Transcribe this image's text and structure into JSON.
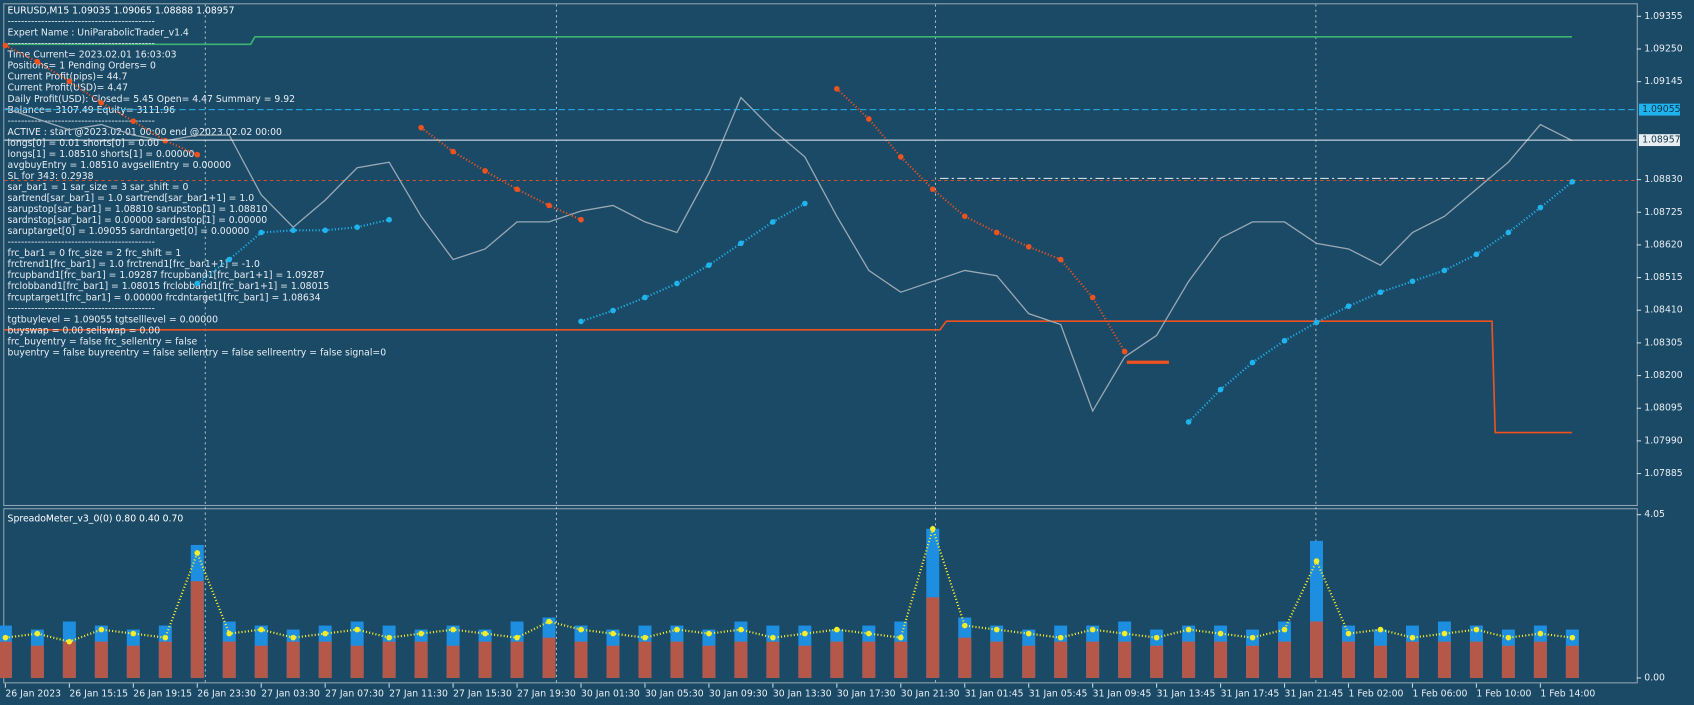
{
  "header": {
    "symbol_line": "EURUSD,M15  1.09035 1.09065 1.08888 1.08957"
  },
  "info_panel": {
    "lines": [
      "--------------------------------------------",
      "Expert Name : UniParabolicTrader_v1.4",
      "--------------------------------------------",
      "Time  Current= 2023.02.01 16:03:03",
      "Positions= 1 Pending Orders= 0",
      "Current Profit(pips)= 44.7",
      "Current Profit(USD)= 4.47",
      "Daily Profit(USD): Closed= 5.45 Open= 4.47 Summary = 9.92",
      "Balance= 3107.49 Equity= 3111.96",
      "--------------------------------------------",
      "ACTIVE : start @2023.02.01 00:00  end @2023.02.02 00:00",
      "longs[0]    = 0.01 shorts[0] = 0.00",
      "longs[1]    = 1.08510 shorts[1] = 0.00000",
      "avgbuyEntry = 1.08510 avgsellEntry = 0.00000",
      "SL for 343: 0.2938",
      "sar_bar1 = 1 sar_size = 3 sar_shift = 0",
      "sartrend[sar_bar1] = 1.0 sartrend[sar_bar1+1] = 1.0",
      "sarupstop[sar_bar1] = 1.08810 sarupstop[1] = 1.08810",
      "sardnstop[sar_bar1] = 0.00000 sardnstop[1] = 0.00000",
      "saruptarget[0] = 1.09055 sardntarget[0] = 0.00000",
      "--------------------------------------------",
      "frc_bar1 = 0 frc_size = 2 frc_shift = 1",
      "frctrend1[frc_bar1] = 1.0 frctrend1[frc_bar1+1] = -1.0",
      "frcupband1[frc_bar1] = 1.09287 frcupband1[frc_bar1+1] = 1.09287",
      "frclobband1[frc_bar1] = 1.08015 frclobband1[frc_bar1+1] = 1.08015",
      "frcuptarget1[frc_bar1] = 0.00000 frcdntarget1[frc_bar1] = 1.08634",
      "--------------------------------------------",
      "tgtbuylevel = 1.09055 tgtselllevel = 0.00000",
      "buyswap = 0.00 sellswap = 0.00",
      "frc_buyentry = false frc_sellentry = false",
      "buyentry = false buyreentry = false sellentry = false sellreentry = false signal=0"
    ]
  },
  "chart_data": [
    {
      "type": "line",
      "categories": [
        "26 Jan 2023",
        null,
        "26 Jan 15:15",
        null,
        "26 Jan 19:15",
        null,
        "26 Jan 23:30",
        null,
        "27 Jan 03:30",
        null,
        "27 Jan 07:30",
        null,
        "27 Jan 11:30",
        null,
        "27 Jan 15:30",
        null,
        "27 Jan 19:30",
        null,
        "30 Jan 01:30",
        null,
        "30 Jan 05:30",
        null,
        "30 Jan 09:30",
        null,
        "30 Jan 13:30",
        null,
        "30 Jan 17:30",
        null,
        "30 Jan 21:30",
        null,
        "31 Jan 01:45",
        null,
        "31 Jan 05:45",
        null,
        "31 Jan 09:45",
        null,
        "31 Jan 13:45",
        null,
        "31 Jan 17:45",
        null,
        "31 Jan 21:45",
        null,
        "1 Feb 02:00",
        null,
        "1 Feb 06:00",
        null,
        "1 Feb 10:00",
        null,
        "1 Feb 14:00",
        null
      ],
      "series": [
        {
          "color": "#9aa9b4",
          "style": "line",
          "values": [
            1.09059,
            1.09025,
            1.0899,
            1.09007,
            1.08973,
            1.08955,
            1.08973,
            1.08973,
            1.08781,
            1.08677,
            1.08764,
            1.08868,
            1.08886,
            1.08712,
            1.08573,
            1.08607,
            1.08694,
            1.08694,
            1.08729,
            1.08747,
            1.08694,
            1.0866,
            1.08851,
            1.09094,
            1.0899,
            1.08903,
            1.08712,
            1.08538,
            1.08468,
            1.08503,
            1.08538,
            1.08521,
            1.08399,
            1.08364,
            1.08086,
            1.0826,
            1.08329,
            1.08503,
            1.08642,
            1.08694,
            1.08694,
            1.08625,
            1.08607,
            1.08555,
            1.0866,
            1.08712,
            1.08799,
            1.08886,
            1.09007,
            1.08955
          ]
        },
        {
          "color": "#1fb4ee",
          "style": "dots",
          "values": [
            null,
            null,
            null,
            null,
            null,
            null,
            1.08496,
            1.08573,
            1.0866,
            1.08667,
            1.08667,
            1.08677,
            1.08701,
            null,
            null,
            null,
            null,
            null,
            1.08374,
            1.08409,
            1.08451,
            1.08496,
            1.08555,
            1.08625,
            1.08694,
            1.08753,
            null,
            null,
            null,
            null,
            null,
            null,
            null,
            null,
            null,
            null,
            null,
            1.08051,
            1.08155,
            1.08242,
            1.08312,
            1.08371,
            1.08423,
            1.08468,
            1.08503,
            1.08538,
            1.0859,
            1.0866,
            1.0874,
            1.08823
          ]
        },
        {
          "color": "#f0521e",
          "style": "dots",
          "values": [
            1.09261,
            1.09209,
            1.09146,
            1.09077,
            1.09018,
            1.08955,
            1.0891,
            null,
            null,
            null,
            null,
            null,
            null,
            1.08997,
            1.0892,
            1.08858,
            1.08799,
            1.08747,
            1.08701,
            null,
            null,
            null,
            null,
            null,
            null,
            null,
            1.09122,
            1.09025,
            1.08903,
            1.08799,
            1.08712,
            1.0866,
            1.08614,
            1.08573,
            1.08451,
            1.08277,
            null,
            null,
            null,
            null,
            null,
            null,
            null,
            null,
            null,
            null,
            null,
            null,
            null,
            null
          ]
        }
      ],
      "levels": [
        {
          "value": 1.09055,
          "color": "#1fb4ee"
        },
        {
          "value": 1.08957,
          "color": "#e8eef2"
        }
      ],
      "ylim": [
        1.07784,
        1.09397
      ],
      "yticks": [
        1.09355,
        {
          "value": 1.0925,
          "label": "1.09250"
        },
        1.09145,
        {
          "value": 1.0883,
          "label": "1.08830"
        },
        1.08725,
        {
          "value": 1.0862,
          "label": "1.08620"
        },
        1.08515,
        {
          "value": 1.0841,
          "label": "1.08410"
        },
        1.08305,
        {
          "value": 1.082,
          "label": "1.08200"
        },
        1.08095,
        {
          "value": 1.0799,
          "label": "1.07990"
        },
        1.07885
      ]
    },
    {
      "type": "bar",
      "title": "SpreadoMeter_v3_0(0) 0.80 0.40 0.70",
      "series": [
        {
          "color": "#1e8fe0",
          "style": "bar",
          "values": [
            1.3,
            1.2,
            1.4,
            1.3,
            1.2,
            1.3,
            3.3,
            1.4,
            1.3,
            1.2,
            1.3,
            1.4,
            1.3,
            1.2,
            1.3,
            1.2,
            1.4,
            1.5,
            1.3,
            1.2,
            1.3,
            1.3,
            1.2,
            1.4,
            1.3,
            1.3,
            1.2,
            1.3,
            1.4,
            3.7,
            1.5,
            1.3,
            1.2,
            1.3,
            1.3,
            1.4,
            1.2,
            1.3,
            1.3,
            1.2,
            1.4,
            3.4,
            1.3,
            1.2,
            1.3,
            1.4,
            1.3,
            1.2,
            1.3,
            1.2
          ]
        },
        {
          "color": "#b5584a",
          "style": "bar",
          "values": [
            0.9,
            0.8,
            0.9,
            0.9,
            0.8,
            0.9,
            2.4,
            0.9,
            0.8,
            0.9,
            0.9,
            0.8,
            0.9,
            0.9,
            0.8,
            0.9,
            0.9,
            1.0,
            0.9,
            0.8,
            0.9,
            0.9,
            0.8,
            0.9,
            0.9,
            0.8,
            0.9,
            0.9,
            0.9,
            2.0,
            1.0,
            0.9,
            0.8,
            0.9,
            0.9,
            0.9,
            0.8,
            0.9,
            0.9,
            0.8,
            0.9,
            1.4,
            0.9,
            0.8,
            0.9,
            0.9,
            0.9,
            0.8,
            0.9,
            0.8
          ]
        },
        {
          "color": "#f5ec2a",
          "style": "dots",
          "values": [
            1.0,
            1.1,
            0.9,
            1.2,
            1.1,
            1.0,
            3.1,
            1.1,
            1.2,
            1.0,
            1.1,
            1.2,
            1.0,
            1.1,
            1.2,
            1.1,
            1.0,
            1.4,
            1.2,
            1.1,
            1.0,
            1.2,
            1.1,
            1.2,
            1.0,
            1.1,
            1.2,
            1.1,
            1.0,
            3.7,
            1.3,
            1.2,
            1.1,
            1.0,
            1.2,
            1.1,
            1.0,
            1.2,
            1.1,
            1.0,
            1.2,
            2.9,
            1.1,
            1.2,
            1.0,
            1.1,
            1.2,
            1.0,
            1.1,
            1.0
          ]
        }
      ],
      "ylim": [
        0,
        4.05
      ],
      "yticks": [
        4.05,
        {
          "value": 0,
          "label": "0.00"
        }
      ]
    }
  ]
}
